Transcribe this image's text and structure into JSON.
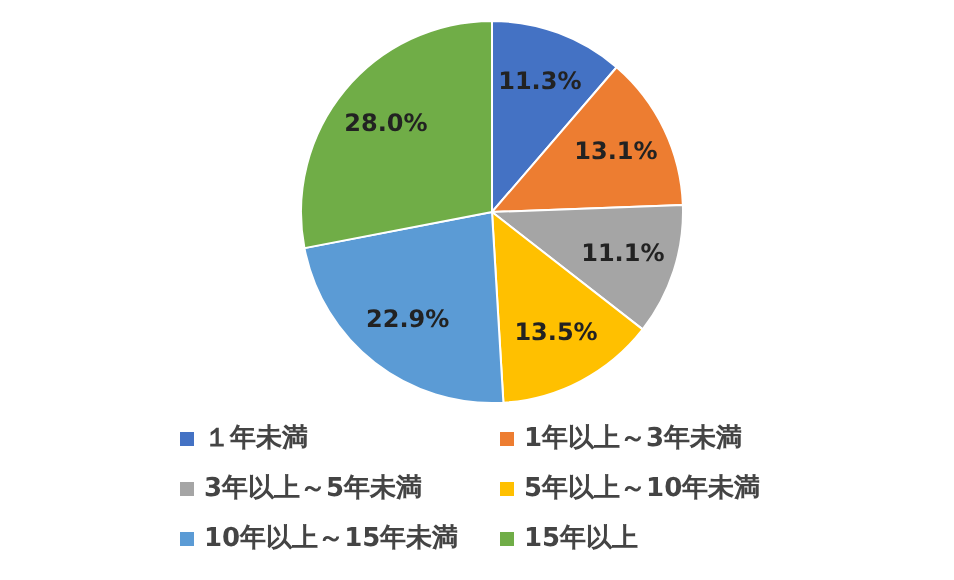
{
  "chart_data": {
    "type": "pie",
    "categories": [
      "１年未満",
      "1年以上～3年未満",
      "3年以上～5年未満",
      "5年以上～10年未満",
      "10年以上～15年未満",
      "15年以上"
    ],
    "values": [
      11.3,
      13.1,
      11.1,
      13.5,
      22.9,
      28.0
    ],
    "value_labels": [
      "11.3%",
      "13.1%",
      "11.1%",
      "13.5%",
      "22.9%",
      "28.0%"
    ],
    "colors": [
      "#4472c4",
      "#ed7d31",
      "#a5a5a5",
      "#ffc000",
      "#5b9bd5",
      "#70ad47"
    ],
    "legend": "bottom"
  }
}
